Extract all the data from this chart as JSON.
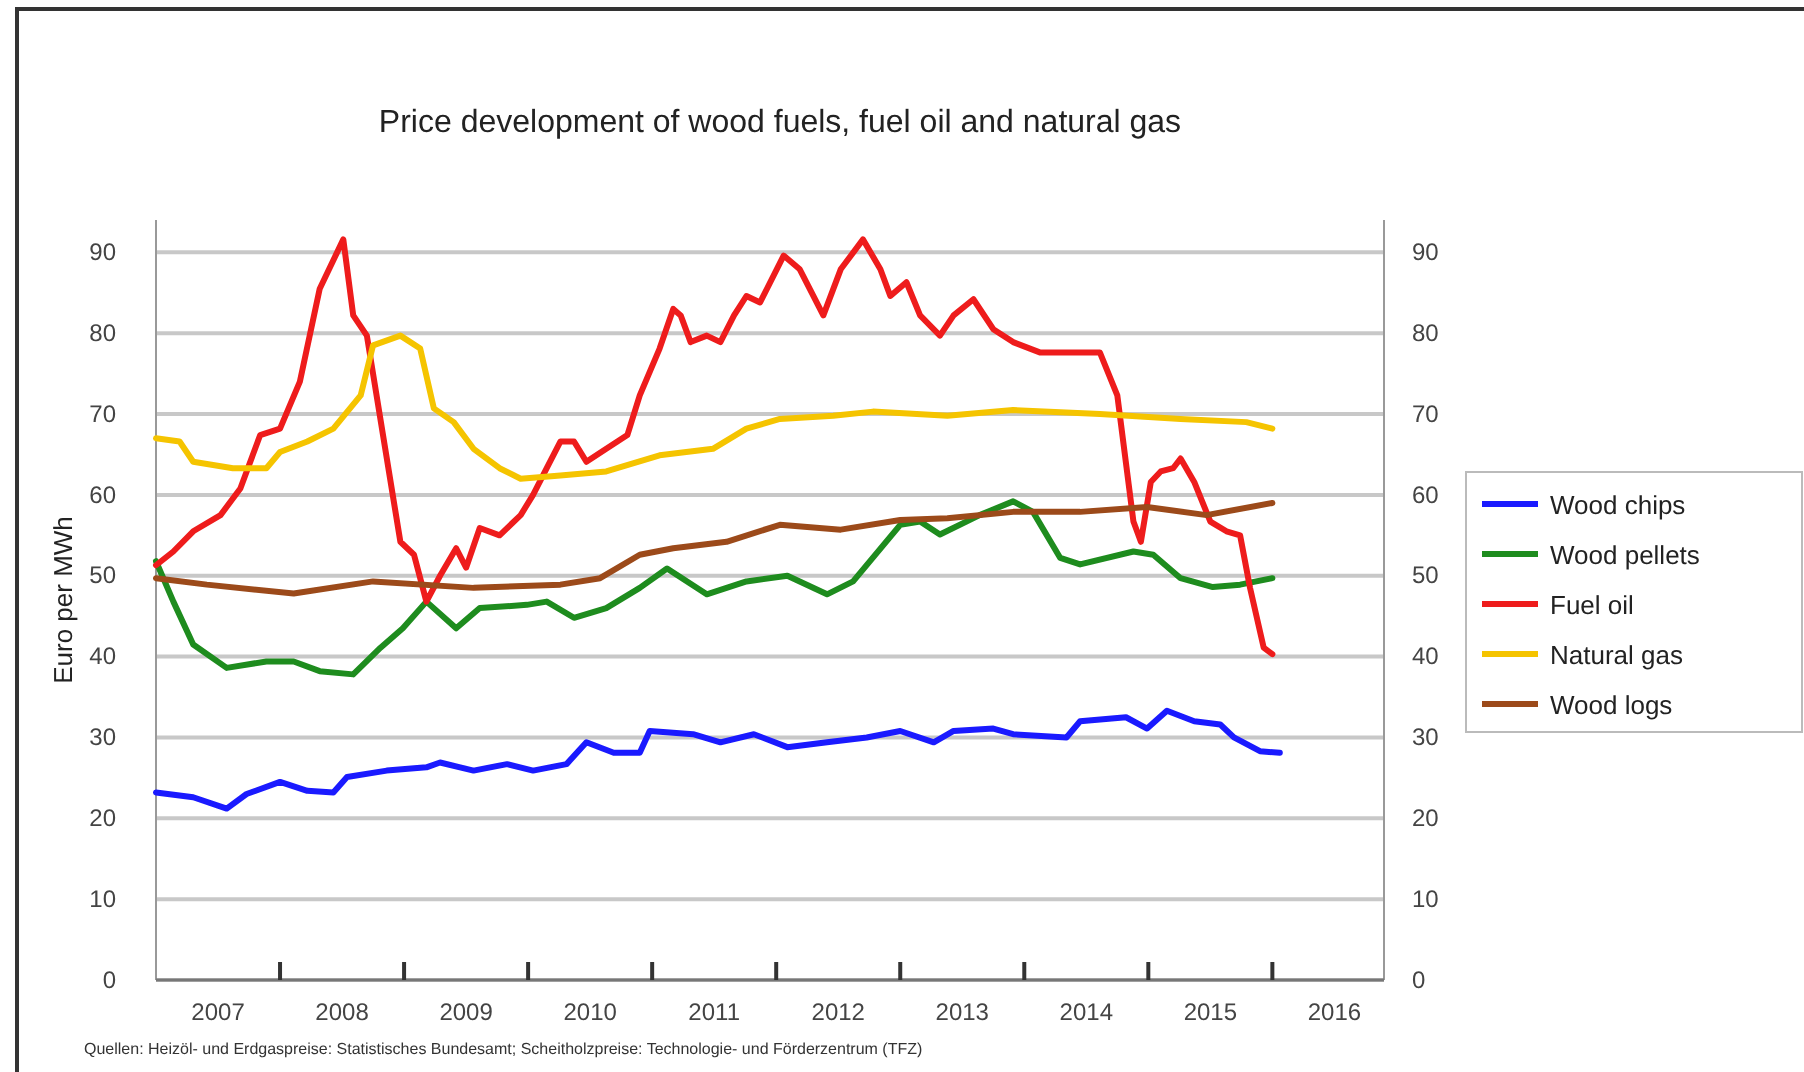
{
  "chart_data": {
    "type": "line",
    "title": "Price development of wood fuels, fuel oil and natural gas",
    "ylabel": "Euro per MWh",
    "annotations": [
      "Quellen: Heizöl- und Erdgaspreise: Statistisches Bundesamt; Scheitholzpreise: Technologie- und Förderzentrum (TFZ)"
    ],
    "xlim": [
      2007,
      2016.9
    ],
    "xticks": [
      {
        "value": 2007.5,
        "label": "2007"
      },
      {
        "value": 2008,
        "label": null
      },
      {
        "value": 2008.5,
        "label": "2008"
      },
      {
        "value": 2009,
        "label": null
      },
      {
        "value": 2009.5,
        "label": "2009"
      },
      {
        "value": 2010,
        "label": null
      },
      {
        "value": 2010.5,
        "label": "2010"
      },
      {
        "value": 2011,
        "label": null
      },
      {
        "value": 2011.5,
        "label": "2011"
      },
      {
        "value": 2012,
        "label": null
      },
      {
        "value": 2012.5,
        "label": "2012"
      },
      {
        "value": 2013,
        "label": null
      },
      {
        "value": 2013.5,
        "label": "2013"
      },
      {
        "value": 2014,
        "label": null
      },
      {
        "value": 2014.5,
        "label": "2014"
      },
      {
        "value": 2015,
        "label": null
      },
      {
        "value": 2015.5,
        "label": "2015"
      },
      {
        "value": 2016,
        "label": null
      },
      {
        "value": 2016.5,
        "label": "2016"
      }
    ],
    "ylim": [
      0,
      94
    ],
    "yticks": [
      0,
      10,
      20,
      30,
      40,
      50,
      60,
      70,
      80,
      90
    ],
    "y2lim": [
      0,
      94
    ],
    "y2ticks": [
      0,
      10,
      20,
      30,
      40,
      50,
      60,
      70,
      80,
      90
    ],
    "grid": "y",
    "legend": "right",
    "marker": "none",
    "line_style": "solid",
    "series": [
      {
        "name": "Wood chips",
        "color": "#1a1aff",
        "x": [
          2007.0,
          2007.3,
          2007.57,
          2007.73,
          2008.0,
          2008.22,
          2008.43,
          2008.54,
          2008.86,
          2009.18,
          2009.29,
          2009.56,
          2009.83,
          2010.04,
          2010.31,
          2010.47,
          2010.69,
          2010.9,
          2010.98,
          2011.33,
          2011.55,
          2011.82,
          2012.09,
          2012.41,
          2012.73,
          2013.0,
          2013.27,
          2013.43,
          2013.75,
          2013.91,
          2014.34,
          2014.45,
          2014.82,
          2014.99,
          2015.15,
          2015.37,
          2015.58,
          2015.69,
          2015.9,
          2016.06
        ],
        "values": [
          23.2,
          22.6,
          21.2,
          23,
          24.5,
          23.4,
          23.2,
          25.1,
          25.9,
          26.3,
          26.9,
          25.9,
          26.7,
          25.9,
          26.7,
          29.4,
          28.1,
          28.1,
          30.8,
          30.4,
          29.4,
          30.4,
          28.8,
          29.4,
          30,
          30.8,
          29.4,
          30.8,
          31.1,
          30.4,
          30,
          32,
          32.5,
          31.1,
          33.3,
          32,
          31.6,
          30,
          28.3,
          28.1
        ]
      },
      {
        "name": "Wood pellets",
        "color": "#1e8c1e",
        "x": [
          2007.0,
          2007.14,
          2007.3,
          2007.57,
          2007.89,
          2008.11,
          2008.32,
          2008.59,
          2008.81,
          2008.99,
          2009.18,
          2009.42,
          2009.61,
          2009.99,
          2010.15,
          2010.37,
          2010.63,
          2010.9,
          2011.12,
          2011.44,
          2011.76,
          2012.09,
          2012.41,
          2012.62,
          2013.0,
          2013.16,
          2013.32,
          2013.64,
          2013.91,
          2014.07,
          2014.29,
          2014.45,
          2014.88,
          2015.04,
          2015.26,
          2015.52,
          2015.74,
          2016.0
        ],
        "values": [
          51.8,
          46.8,
          41.5,
          38.6,
          39.4,
          39.4,
          38.2,
          37.8,
          41.1,
          43.5,
          46.8,
          43.5,
          46,
          46.4,
          46.8,
          44.8,
          46,
          48.5,
          50.9,
          47.7,
          49.3,
          50,
          47.7,
          49.3,
          56.3,
          56.7,
          55.1,
          57.5,
          59.2,
          57.9,
          52.2,
          51.4,
          53,
          52.6,
          49.7,
          48.6,
          48.9,
          49.7
        ]
      },
      {
        "name": "Fuel oil",
        "color": "#ee1c1c",
        "x": [
          2007.0,
          2007.14,
          2007.3,
          2007.52,
          2007.68,
          2007.84,
          2008.0,
          2008.16,
          2008.32,
          2008.51,
          2008.59,
          2008.7,
          2008.83,
          2008.97,
          2009.08,
          2009.18,
          2009.29,
          2009.42,
          2009.5,
          2009.61,
          2009.77,
          2009.94,
          2010.04,
          2010.15,
          2010.26,
          2010.37,
          2010.47,
          2010.63,
          2010.8,
          2010.9,
          2011.06,
          2011.17,
          2011.23,
          2011.31,
          2011.44,
          2011.55,
          2011.66,
          2011.76,
          2011.87,
          2012.06,
          2012.19,
          2012.38,
          2012.52,
          2012.7,
          2012.84,
          2012.92,
          2013.05,
          2013.16,
          2013.32,
          2013.43,
          2013.59,
          2013.75,
          2013.91,
          2014.13,
          2014.45,
          2014.61,
          2014.75,
          2014.88,
          2014.94,
          2015.02,
          2015.1,
          2015.2,
          2015.26,
          2015.37,
          2015.5,
          2015.63,
          2015.74,
          2015.82,
          2015.93,
          2016.0
        ],
        "values": [
          51.3,
          53,
          55.5,
          57.5,
          60.8,
          67.4,
          68.2,
          74,
          85.5,
          91.6,
          82.2,
          79.7,
          67.4,
          54.2,
          52.6,
          46.8,
          50,
          53.4,
          51,
          55.9,
          55,
          57.5,
          60,
          63.3,
          66.6,
          66.6,
          64.1,
          65.7,
          67.4,
          72.3,
          78.1,
          83,
          82.2,
          78.9,
          79.7,
          78.9,
          82.2,
          84.6,
          83.8,
          89.6,
          87.9,
          82.2,
          87.9,
          91.6,
          87.9,
          84.6,
          86.3,
          82.2,
          79.7,
          82.2,
          84.2,
          80.5,
          78.9,
          77.6,
          77.6,
          77.6,
          72.3,
          56.7,
          54.2,
          61.6,
          62.9,
          63.3,
          64.5,
          61.6,
          56.7,
          55.5,
          55,
          48.5,
          41.1,
          40.3
        ]
      },
      {
        "name": "Natural gas",
        "color": "#f5c400",
        "x": [
          2007.0,
          2007.19,
          2007.3,
          2007.62,
          2007.89,
          2008.0,
          2008.22,
          2008.43,
          2008.65,
          2008.75,
          2008.97,
          2009.13,
          2009.24,
          2009.4,
          2009.56,
          2009.77,
          2009.94,
          2010.26,
          2010.63,
          2011.06,
          2011.49,
          2011.76,
          2012.03,
          2012.46,
          2012.78,
          2013.38,
          2013.91,
          2014.61,
          2015.26,
          2015.79,
          2016.0
        ],
        "values": [
          67,
          66.6,
          64.1,
          63.3,
          63.3,
          65.3,
          66.6,
          68.2,
          72.3,
          78.5,
          79.7,
          78.1,
          70.7,
          69,
          65.7,
          63.3,
          62,
          62.4,
          62.9,
          64.9,
          65.7,
          68.2,
          69.4,
          69.8,
          70.3,
          69.8,
          70.5,
          70,
          69.4,
          69,
          68.2
        ]
      },
      {
        "name": "Wood logs",
        "color": "#9c4a1a",
        "x": [
          2007.0,
          2007.41,
          2008.11,
          2008.75,
          2009.56,
          2010.26,
          2010.58,
          2010.9,
          2011.17,
          2011.6,
          2012.03,
          2012.52,
          2013.0,
          2013.38,
          2013.91,
          2014.45,
          2014.99,
          2015.47,
          2016.0
        ],
        "values": [
          49.7,
          48.9,
          47.8,
          49.3,
          48.5,
          48.9,
          49.7,
          52.6,
          53.4,
          54.2,
          56.3,
          55.7,
          56.9,
          57.1,
          57.9,
          57.9,
          58.5,
          57.5,
          59
        ]
      }
    ]
  }
}
